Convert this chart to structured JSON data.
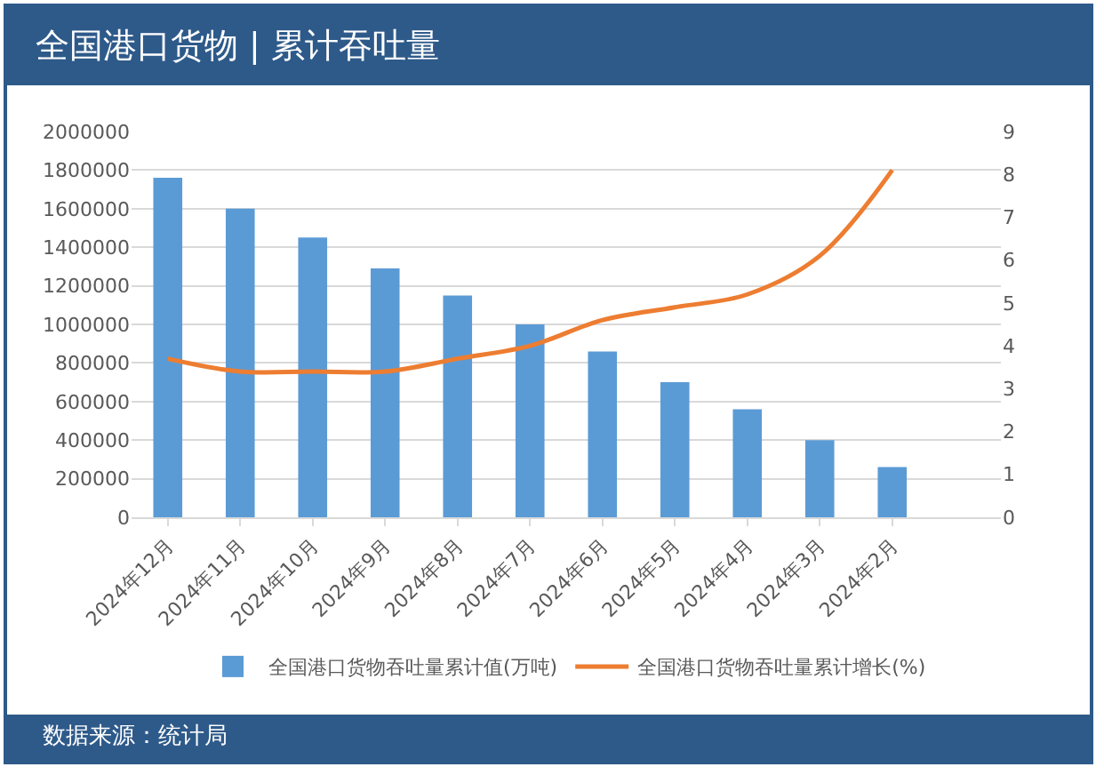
{
  "chart_data": {
    "type": "bar",
    "title": "全国港口货物 | 累计吞吐量",
    "categories": [
      "2024年12月",
      "2024年11月",
      "2024年10月",
      "2024年9月",
      "2024年8月",
      "2024年7月",
      "2024年6月",
      "2024年5月",
      "2024年4月",
      "2024年3月",
      "2024年2月",
      null
    ],
    "series": [
      {
        "name": "全国港口货物吞吐量累计值(万吨)",
        "color": "#5b9bd5",
        "values": [
          1760000,
          1600000,
          1450000,
          1290000,
          1150000,
          1000000,
          860000,
          700000,
          560000,
          400000,
          260000,
          null
        ]
      },
      {
        "name": "全国港口货物吞吐量累计增长(%)",
        "type": "line",
        "axis": "y2",
        "color": "#ed7d31",
        "values": [
          3.7,
          3.4,
          3.4,
          3.4,
          3.7,
          4.0,
          4.6,
          4.9,
          5.2,
          6.1,
          8.1,
          null
        ]
      }
    ],
    "ylim": [
      0,
      2000000
    ],
    "yticks": [
      0,
      200000,
      400000,
      600000,
      800000,
      1000000,
      1200000,
      1400000,
      1600000,
      1800000,
      2000000
    ],
    "y2lim": [
      0,
      9
    ],
    "y2ticks": [
      0,
      1,
      2,
      3,
      4,
      5,
      6,
      7,
      8,
      9
    ],
    "grid": "y",
    "legend": "bottom",
    "marker": "none",
    "line_style": "solid",
    "annotations": [
      "数据来源：统计局"
    ]
  }
}
